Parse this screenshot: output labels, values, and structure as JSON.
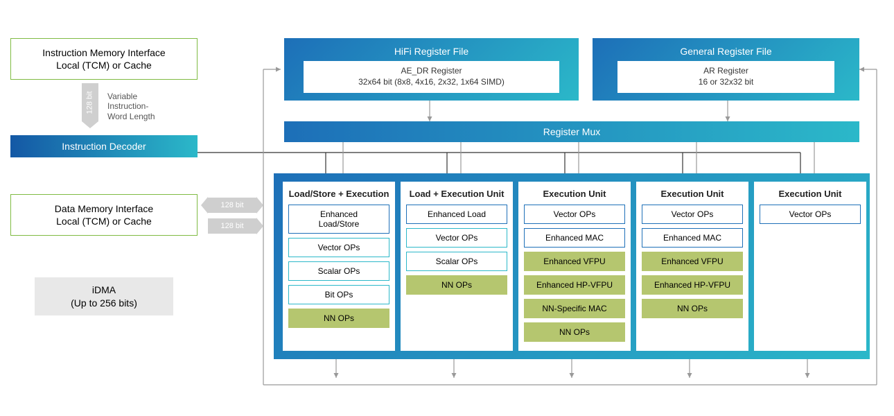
{
  "colors": {
    "green": "#7fbb42",
    "blue": "#1d6fb8",
    "teal": "#2bb8c9",
    "darkblue": "#1458a5",
    "olive": "#b5c66f",
    "grey": "#cfcfcf",
    "lightgrey": "#e8e8e8",
    "text": "#333333"
  },
  "left": {
    "instr_mem": "Instruction Memory Interface\nLocal (TCM) or Cache",
    "data_mem": "Data Memory Interface\nLocal (TCM) or Cache",
    "idma": "iDMA\n(Up to 256 bits)",
    "var_len": "Variable\nInstruction-\nWord Length",
    "bit128": "128 bit"
  },
  "decoder": "Instruction Decoder",
  "hifi": {
    "title": "HiFi Register File",
    "sub": "AE_DR Register\n32x64 bit (8x8, 4x16, 2x32, 1x64 SIMD)"
  },
  "gen": {
    "title": "General Register File",
    "sub": "AR Register\n16 or 32x32 bit"
  },
  "regmux": "Register Mux",
  "units": [
    {
      "title": "Load/Store + Execution",
      "ops": [
        {
          "t": "Enhanced\nLoad/Store",
          "c": "blue"
        },
        {
          "t": "Vector OPs",
          "c": "teal"
        },
        {
          "t": "Scalar OPs",
          "c": "teal"
        },
        {
          "t": "Bit OPs",
          "c": "teal"
        },
        {
          "t": "NN OPs",
          "c": "green"
        }
      ]
    },
    {
      "title": "Load + Execution Unit",
      "ops": [
        {
          "t": "Enhanced Load",
          "c": "blue"
        },
        {
          "t": "Vector OPs",
          "c": "teal"
        },
        {
          "t": "Scalar OPs",
          "c": "teal"
        },
        {
          "t": "NN OPs",
          "c": "green"
        }
      ]
    },
    {
      "title": "Execution Unit",
      "ops": [
        {
          "t": "Vector OPs",
          "c": "blue"
        },
        {
          "t": "Enhanced MAC",
          "c": "blue"
        },
        {
          "t": "Enhanced VFPU",
          "c": "green"
        },
        {
          "t": "Enhanced HP-VFPU",
          "c": "green"
        },
        {
          "t": "NN-Specific MAC",
          "c": "green"
        },
        {
          "t": "NN OPs",
          "c": "green"
        }
      ]
    },
    {
      "title": "Execution Unit",
      "ops": [
        {
          "t": "Vector OPs",
          "c": "blue"
        },
        {
          "t": "Enhanced MAC",
          "c": "blue"
        },
        {
          "t": "Enhanced VFPU",
          "c": "green"
        },
        {
          "t": "Enhanced HP-VFPU",
          "c": "green"
        },
        {
          "t": "NN OPs",
          "c": "green"
        }
      ]
    },
    {
      "title": "Execution Unit",
      "ops": [
        {
          "t": "Vector OPs",
          "c": "blue"
        }
      ]
    }
  ]
}
